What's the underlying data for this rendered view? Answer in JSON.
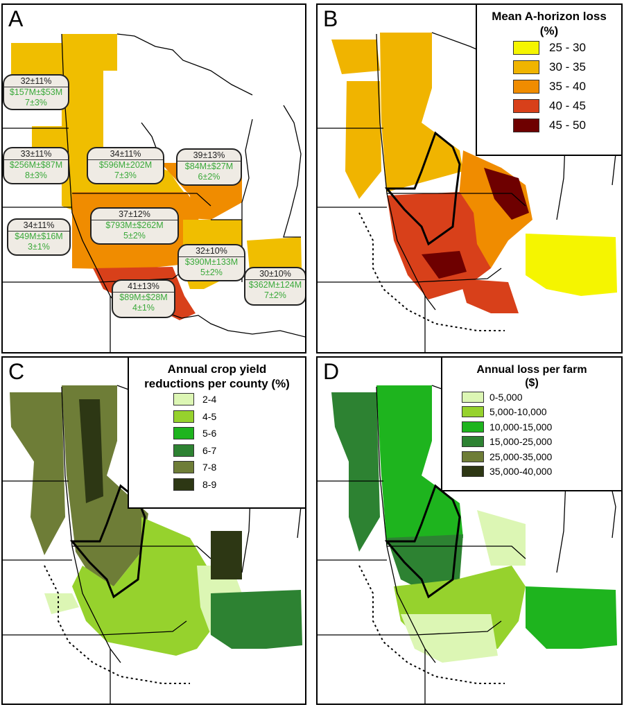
{
  "panels": {
    "a": {
      "letter": "A",
      "regions": [
        {
          "loss_pct": "32±11%",
          "cost": "$157M±$53M",
          "yield": "7±3%"
        },
        {
          "loss_pct": "33±11%",
          "cost": "$256M±$87M",
          "yield": "8±3%"
        },
        {
          "loss_pct": "34±11%",
          "cost": "$596M±202M",
          "yield": "7±3%"
        },
        {
          "loss_pct": "39±13%",
          "cost": "$84M±$27M",
          "yield": "6±2%"
        },
        {
          "loss_pct": "34±11%",
          "cost": "$49M±$16M",
          "yield": "3±1%"
        },
        {
          "loss_pct": "37±12%",
          "cost": "$793M±$262M",
          "yield": "5±2%"
        },
        {
          "loss_pct": "32±10%",
          "cost": "$390M±133M",
          "yield": "5±2%"
        },
        {
          "loss_pct": "30±10%",
          "cost": "$362M±124M",
          "yield": "7±2%"
        },
        {
          "loss_pct": "41±13%",
          "cost": "$89M±$28M",
          "yield": "4±1%"
        }
      ]
    },
    "b": {
      "letter": "B",
      "legend_title_line1": "Mean A-horizon loss",
      "legend_title_line2": "(%)",
      "legend": [
        {
          "label": "25 - 30",
          "color": "#f5f500"
        },
        {
          "label": "30 - 35",
          "color": "#f0b400"
        },
        {
          "label": "35 - 40",
          "color": "#f08c00"
        },
        {
          "label": "40 - 45",
          "color": "#d8401a"
        },
        {
          "label": "45 - 50",
          "color": "#6e0000"
        }
      ]
    },
    "c": {
      "letter": "C",
      "legend_title_line1": "Annual crop yield",
      "legend_title_line2": "reductions per county (%)",
      "legend": [
        {
          "label": "2-4",
          "color": "#dcf6b4"
        },
        {
          "label": "4-5",
          "color": "#96d22d"
        },
        {
          "label": "5-6",
          "color": "#1eb41e"
        },
        {
          "label": "6-7",
          "color": "#2d8232"
        },
        {
          "label": "7-8",
          "color": "#6e7d37"
        },
        {
          "label": "8-9",
          "color": "#2d3714"
        }
      ]
    },
    "d": {
      "letter": "D",
      "legend_title_line1": "Annual loss per farm",
      "legend_title_line2": "($)",
      "legend": [
        {
          "label": "0-5,000",
          "color": "#dcf6b4"
        },
        {
          "label": "5,000-10,000",
          "color": "#96d22d"
        },
        {
          "label": "10,000-15,000",
          "color": "#1eb41e"
        },
        {
          "label": "15,000-25,000",
          "color": "#2d8232"
        },
        {
          "label": "25,000-35,000",
          "color": "#6e7d37"
        },
        {
          "label": "35,000-40,000",
          "color": "#2d3714"
        }
      ]
    }
  }
}
